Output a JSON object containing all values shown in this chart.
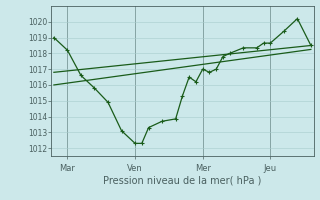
{
  "background_color": "#cce8ea",
  "line_color": "#1a5c1a",
  "grid_color": "#a8cccc",
  "axis_color": "#4a6060",
  "xlabel": "Pression niveau de la mer( hPa )",
  "ylim": [
    1011.5,
    1021.0
  ],
  "yticks": [
    1012,
    1013,
    1014,
    1015,
    1016,
    1017,
    1018,
    1019,
    1020
  ],
  "xtick_labels": [
    "Mar",
    "Ven",
    "Mer",
    "Jeu"
  ],
  "xtick_positions": [
    0.5,
    3.0,
    5.5,
    8.0
  ],
  "xvlines": [
    0.5,
    3.0,
    5.5,
    8.0
  ],
  "xlim": [
    -0.1,
    9.6
  ],
  "main_x": [
    0.0,
    0.5,
    1.0,
    1.5,
    2.0,
    2.5,
    3.0,
    3.25,
    3.5,
    4.0,
    4.5,
    4.75,
    5.0,
    5.25,
    5.5,
    5.75,
    6.0,
    6.25,
    6.5,
    7.0,
    7.5,
    7.75,
    8.0,
    8.5,
    9.0,
    9.5
  ],
  "main_y": [
    1019.0,
    1018.2,
    1016.6,
    1015.8,
    1014.9,
    1013.1,
    1012.3,
    1012.3,
    1013.3,
    1013.7,
    1013.85,
    1015.3,
    1016.5,
    1016.2,
    1017.0,
    1016.8,
    1017.0,
    1017.8,
    1018.0,
    1018.35,
    1018.35,
    1018.65,
    1018.65,
    1019.4,
    1020.2,
    1018.5
  ],
  "trend1_x": [
    0.0,
    9.5
  ],
  "trend1_y": [
    1016.8,
    1018.5
  ],
  "trend2_x": [
    0.0,
    9.5
  ],
  "trend2_y": [
    1016.0,
    1018.25
  ],
  "marker_size": 2.5,
  "linewidth": 0.9,
  "trend_linewidth": 0.9,
  "ytick_fontsize": 5.5,
  "xtick_fontsize": 6.0,
  "xlabel_fontsize": 7.0
}
